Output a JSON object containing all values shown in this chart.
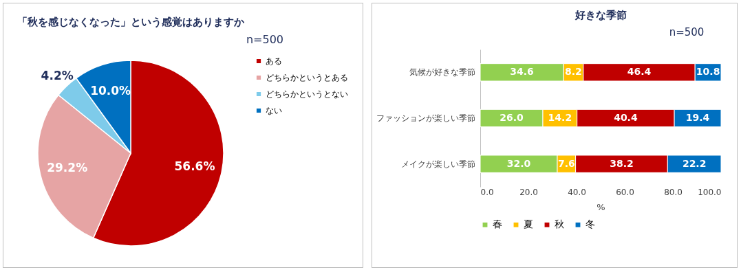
{
  "chart_data": [
    {
      "type": "pie",
      "title": "「秋を感じなくなった」という感覚はありますか",
      "annotations": [
        "n=500"
      ],
      "categories": [
        "ある",
        "どちらかというとある",
        "どちらかというとない",
        "ない"
      ],
      "values": [
        56.6,
        29.2,
        4.2,
        10.0
      ],
      "value_labels": [
        "56.6%",
        "29.2%",
        "4.2%",
        "10.0%"
      ],
      "colors": [
        "#c00000",
        "#e6a4a4",
        "#7ecbea",
        "#0070c0"
      ],
      "legend": "right"
    },
    {
      "type": "bar",
      "orientation": "horizontal",
      "stacked": true,
      "title": "好きな季節",
      "annotations": [
        "n=500"
      ],
      "categories": [
        "気候が好きな季節",
        "ファッションが楽しい季節",
        "メイクが楽しい季節"
      ],
      "series": [
        {
          "name": "春",
          "color": "#92d050",
          "values": [
            34.6,
            26.0,
            32.0
          ],
          "value_labels": [
            "34.6",
            "26.0",
            "32.0"
          ]
        },
        {
          "name": "夏",
          "color": "#ffc000",
          "values": [
            8.2,
            14.2,
            7.6
          ],
          "value_labels": [
            "8.2",
            "14.2",
            "7.6"
          ]
        },
        {
          "name": "秋",
          "color": "#c00000",
          "values": [
            46.4,
            40.4,
            38.2
          ],
          "value_labels": [
            "46.4",
            "40.4",
            "38.2"
          ]
        },
        {
          "name": "冬",
          "color": "#0070c0",
          "values": [
            10.8,
            19.4,
            22.2
          ],
          "value_labels": [
            "10.8",
            "19.4",
            "22.2"
          ]
        }
      ],
      "xlabel": "%",
      "xlim": [
        0,
        100
      ],
      "xticks": [
        {
          "value": 0,
          "label": "0.0"
        },
        {
          "value": 20,
          "label": "20.0"
        },
        {
          "value": 40,
          "label": "40.0"
        },
        {
          "value": 60,
          "label": "60.0"
        },
        {
          "value": 80,
          "label": "80.0"
        },
        {
          "value": 100,
          "label": "100.0"
        }
      ],
      "legend": "bottom"
    }
  ]
}
